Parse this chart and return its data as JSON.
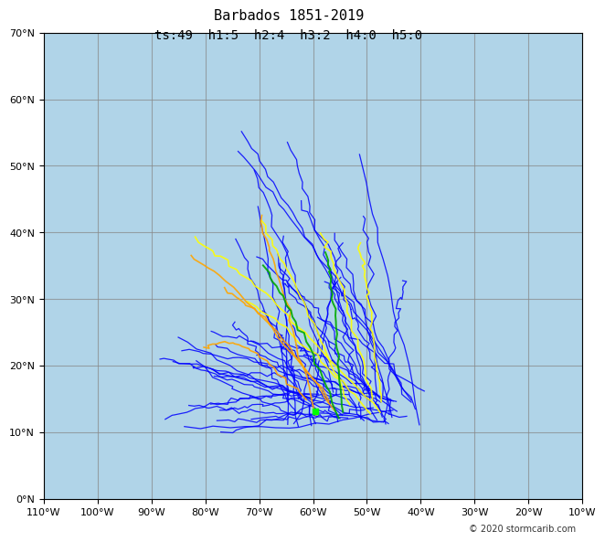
{
  "title_line1": "Barbados 1851-2019",
  "title_line2": "ts:49  h1:5  h2:4  h3:2  h4:0  h5:0",
  "copyright": "© 2020 stormcarib.com",
  "lon_min": -110,
  "lon_max": -10,
  "lat_min": 0,
  "lat_max": 70,
  "lon_ticks": [
    -110,
    -100,
    -90,
    -80,
    -70,
    -60,
    -50,
    -40,
    -30,
    -20,
    -10
  ],
  "lat_ticks": [
    0,
    10,
    20,
    30,
    40,
    50,
    60,
    70
  ],
  "ocean_color": "#b0d4e8",
  "land_color": "#f0e8d0",
  "grid_color": "#888888",
  "background_color": "#ffffff",
  "ts_color": "#0000ff",
  "h1_color": "#ffff00",
  "h2_color": "#ffa500",
  "h3_color": "#00aa00",
  "h4_color": "#00cc00",
  "h5_color": "#ff0000",
  "seed": 42
}
